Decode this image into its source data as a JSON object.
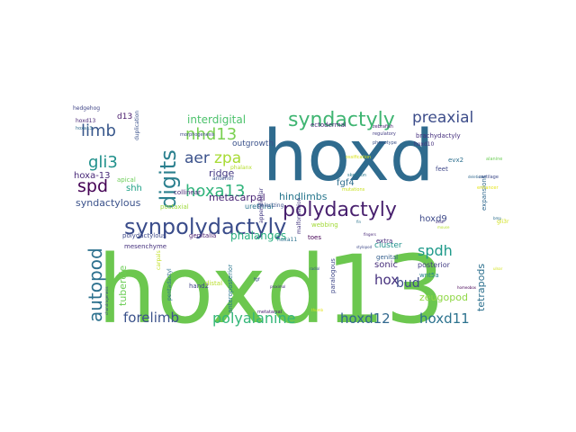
{
  "wordcloud": {
    "words": [
      {
        "text": "hoxd13",
        "color": "#6cc74f"
      },
      {
        "text": "hoxd",
        "color": "#2f6b8e"
      },
      {
        "text": "synpolydactyly",
        "color": "#3a4c8a"
      },
      {
        "text": "polydactyly",
        "color": "#48206e"
      },
      {
        "text": "syndactyly",
        "color": "#3fb572"
      },
      {
        "text": "autopod",
        "color": "#2d718e"
      },
      {
        "text": "digits",
        "color": "#2a7f8e"
      },
      {
        "text": "preaxial",
        "color": "#3d4d8a"
      },
      {
        "text": "hoxa13",
        "color": "#31b47c"
      },
      {
        "text": "nhd13",
        "color": "#7ad151"
      },
      {
        "text": "limb",
        "color": "#39588c"
      },
      {
        "text": "gli3",
        "color": "#21918c"
      },
      {
        "text": "spd",
        "color": "#440154"
      },
      {
        "text": "aer",
        "color": "#3b528b"
      },
      {
        "text": "zpa",
        "color": "#a7db34"
      },
      {
        "text": "spdh",
        "color": "#1f9a8a"
      },
      {
        "text": "forelimb",
        "color": "#3b528b"
      },
      {
        "text": "polyalanine",
        "color": "#35b779"
      },
      {
        "text": "hoxd12",
        "color": "#31688e"
      },
      {
        "text": "hoxd11",
        "color": "#2c728e"
      },
      {
        "text": "hox",
        "color": "#46317e"
      },
      {
        "text": "bud",
        "color": "#3e4989"
      },
      {
        "text": "metacarpal",
        "color": "#482475"
      },
      {
        "text": "phalanges",
        "color": "#29af7f"
      },
      {
        "text": "hindlimbs",
        "color": "#2a788e"
      },
      {
        "text": "interdigital",
        "color": "#4cc26c"
      },
      {
        "text": "ridge",
        "color": "#443983"
      },
      {
        "text": "tetrapods",
        "color": "#2d708e"
      },
      {
        "text": "zeugopod",
        "color": "#8fd744"
      },
      {
        "text": "hoxa-13",
        "color": "#482878"
      },
      {
        "text": "syndactylous",
        "color": "#3b528b"
      },
      {
        "text": "hoxd9",
        "color": "#3e4a89"
      },
      {
        "text": "sonic",
        "color": "#472d7b"
      },
      {
        "text": "fgf4",
        "color": "#2e6e8e"
      },
      {
        "text": "tubercle",
        "color": "#6ece58"
      },
      {
        "text": "shh",
        "color": "#1fa187"
      },
      {
        "text": "d13",
        "color": "#481a6c"
      },
      {
        "text": "outgrowth",
        "color": "#3b528b"
      },
      {
        "text": "cluster",
        "color": "#21918c"
      },
      {
        "text": "posterior",
        "color": "#433e85"
      },
      {
        "text": "urethral",
        "color": "#2c738e"
      },
      {
        "text": "postaxial",
        "color": "#9dd93b"
      },
      {
        "text": "polydactylous",
        "color": "#3e4989"
      },
      {
        "text": "genitalia",
        "color": "#4a1d6e"
      },
      {
        "text": "webbing",
        "color": "#a2da37"
      },
      {
        "text": "mesenchyme",
        "color": "#46327e"
      },
      {
        "text": "hand2",
        "color": "#404387"
      },
      {
        "text": "pentadactyl",
        "color": "#2e6e8e"
      },
      {
        "text": "paralogous",
        "color": "#3f4788"
      },
      {
        "text": "wnt5a",
        "color": "#26828e"
      },
      {
        "text": "extra",
        "color": "#472c7a"
      },
      {
        "text": "genital",
        "color": "#35608d"
      },
      {
        "text": "anterior",
        "color": "#3a548c"
      },
      {
        "text": "apical",
        "color": "#6ece58"
      },
      {
        "text": "collinear",
        "color": "#482475"
      },
      {
        "text": "polarizing",
        "color": "#3b528b"
      },
      {
        "text": "toes",
        "color": "#440154"
      },
      {
        "text": "feet",
        "color": "#3f4788"
      },
      {
        "text": "hedgehog",
        "color": "#404688"
      },
      {
        "text": "ectodermal",
        "color": "#482878"
      },
      {
        "text": "hoxa11",
        "color": "#2c728e"
      },
      {
        "text": "phalanx",
        "color": "#b5de2b"
      },
      {
        "text": "expansions",
        "color": "#31688e"
      },
      {
        "text": "brachydactyly",
        "color": "#46307e"
      },
      {
        "text": "morphogenesis",
        "color": "#3f4889"
      },
      {
        "text": "anteroposterior",
        "color": "#2a768e"
      },
      {
        "text": "malformation",
        "color": "#453781"
      },
      {
        "text": "distal",
        "color": "#b8de29"
      },
      {
        "text": "carpals",
        "color": "#c2df23"
      },
      {
        "text": "duplication",
        "color": "#3b528b"
      },
      {
        "text": "appendicular",
        "color": "#443a83"
      },
      {
        "text": "hoxd10",
        "color": "#46327e"
      },
      {
        "text": "evx2",
        "color": "#2d708e"
      },
      {
        "text": "gli3r",
        "color": "#d0e11c"
      },
      {
        "text": "fgf",
        "color": "#3b528b"
      },
      {
        "text": "hoxd13",
        "color": "#482576"
      },
      {
        "text": "hoxa13",
        "color": "#2f6c8e"
      },
      {
        "text": "zebrafish",
        "color": "#481f70"
      },
      {
        "text": "regulatory",
        "color": "#433d84"
      },
      {
        "text": "phenotype",
        "color": "#3b528b"
      },
      {
        "text": "mutations",
        "color": "#c8e020"
      },
      {
        "text": "skeleton",
        "color": "#2a788e"
      },
      {
        "text": "ossification",
        "color": "#d8e219"
      },
      {
        "text": "chondrogenesis",
        "color": "#414487"
      },
      {
        "text": "metatarsal",
        "color": "#482071"
      },
      {
        "text": "cartilage",
        "color": "#3e4a89"
      },
      {
        "text": "enhancer",
        "color": "#e5e419"
      },
      {
        "text": "proximal",
        "color": "#472f7d"
      },
      {
        "text": "alanine",
        "color": "#6ece58"
      },
      {
        "text": "homeobox",
        "color": "#440154"
      },
      {
        "text": "deletion",
        "color": "#31688e"
      },
      {
        "text": "bmp",
        "color": "#2e6f8e"
      },
      {
        "text": "ulnar",
        "color": "#d2e21b"
      },
      {
        "text": "radial",
        "color": "#3b528b"
      },
      {
        "text": "axial",
        "color": "#46307e"
      },
      {
        "text": "mouse",
        "color": "#b5de2b"
      },
      {
        "text": "fin",
        "color": "#2c738e"
      },
      {
        "text": "fingers",
        "color": "#482878"
      },
      {
        "text": "thumb",
        "color": "#e3e418"
      },
      {
        "text": "stylopod",
        "color": "#3e4989"
      }
    ]
  }
}
